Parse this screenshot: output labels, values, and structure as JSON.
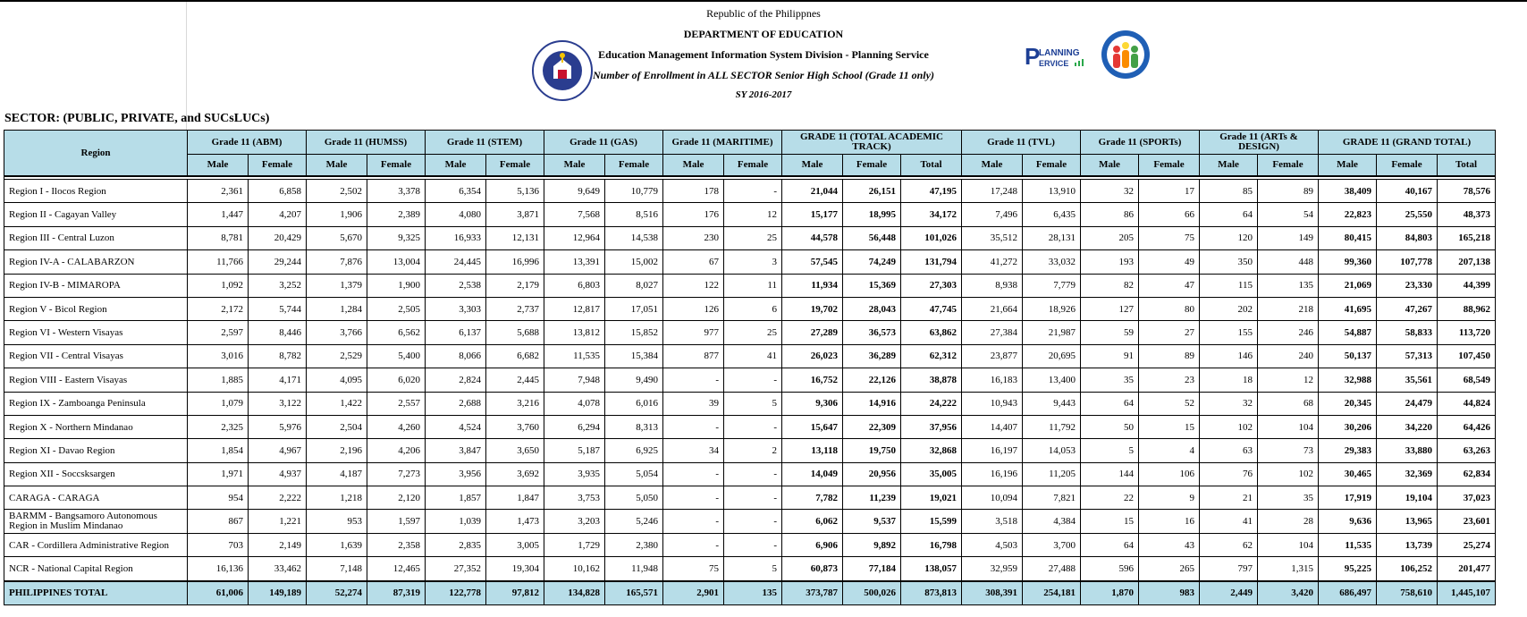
{
  "header": {
    "line1": "Republic of the Philippnes",
    "line2": "DEPARTMENT OF EDUCATION",
    "line3": "Education Management Information System Division - Planning Service",
    "line4": "Number of Enrollment in ALL SECTOR Senior High School (Grade 11 only)",
    "line5": "SY 2016-2017",
    "seal_text": "KAGAWARAN NG EDUKASYON",
    "planning_logo": "PLANNING SERVICE"
  },
  "sector_label": "SECTOR: (PUBLIC, PRIVATE, and SUCsLUCs)",
  "table": {
    "region_header": "Region",
    "groups": [
      "Grade 11 (ABM)",
      "Grade 11 (HUMSS)",
      "Grade 11 (STEM)",
      "Grade 11 (GAS)",
      "Grade 11 (MARITIME)",
      "GRADE 11 (TOTAL ACADEMIC TRACK)",
      "Grade 11 (TVL)",
      "Grade 11 (SPORTs)",
      "Grade 11 (ARTs & DESIGN)",
      "GRADE 11 (GRAND TOTAL)"
    ],
    "sub": {
      "male": "Male",
      "female": "Female",
      "total": "Total"
    },
    "rows": [
      [
        "Region I - Ilocos Region",
        "2,361",
        "6,858",
        "2,502",
        "3,378",
        "6,354",
        "5,136",
        "9,649",
        "10,779",
        "178",
        "-",
        "21,044",
        "26,151",
        "47,195",
        "17,248",
        "13,910",
        "32",
        "17",
        "85",
        "89",
        "38,409",
        "40,167",
        "78,576"
      ],
      [
        "Region II - Cagayan Valley",
        "1,447",
        "4,207",
        "1,906",
        "2,389",
        "4,080",
        "3,871",
        "7,568",
        "8,516",
        "176",
        "12",
        "15,177",
        "18,995",
        "34,172",
        "7,496",
        "6,435",
        "86",
        "66",
        "64",
        "54",
        "22,823",
        "25,550",
        "48,373"
      ],
      [
        "Region III - Central Luzon",
        "8,781",
        "20,429",
        "5,670",
        "9,325",
        "16,933",
        "12,131",
        "12,964",
        "14,538",
        "230",
        "25",
        "44,578",
        "56,448",
        "101,026",
        "35,512",
        "28,131",
        "205",
        "75",
        "120",
        "149",
        "80,415",
        "84,803",
        "165,218"
      ],
      [
        "Region IV-A - CALABARZON",
        "11,766",
        "29,244",
        "7,876",
        "13,004",
        "24,445",
        "16,996",
        "13,391",
        "15,002",
        "67",
        "3",
        "57,545",
        "74,249",
        "131,794",
        "41,272",
        "33,032",
        "193",
        "49",
        "350",
        "448",
        "99,360",
        "107,778",
        "207,138"
      ],
      [
        "Region IV-B - MIMAROPA",
        "1,092",
        "3,252",
        "1,379",
        "1,900",
        "2,538",
        "2,179",
        "6,803",
        "8,027",
        "122",
        "11",
        "11,934",
        "15,369",
        "27,303",
        "8,938",
        "7,779",
        "82",
        "47",
        "115",
        "135",
        "21,069",
        "23,330",
        "44,399"
      ],
      [
        "Region V - Bicol Region",
        "2,172",
        "5,744",
        "1,284",
        "2,505",
        "3,303",
        "2,737",
        "12,817",
        "17,051",
        "126",
        "6",
        "19,702",
        "28,043",
        "47,745",
        "21,664",
        "18,926",
        "127",
        "80",
        "202",
        "218",
        "41,695",
        "47,267",
        "88,962"
      ],
      [
        "Region VI - Western Visayas",
        "2,597",
        "8,446",
        "3,766",
        "6,562",
        "6,137",
        "5,688",
        "13,812",
        "15,852",
        "977",
        "25",
        "27,289",
        "36,573",
        "63,862",
        "27,384",
        "21,987",
        "59",
        "27",
        "155",
        "246",
        "54,887",
        "58,833",
        "113,720"
      ],
      [
        "Region VII - Central Visayas",
        "3,016",
        "8,782",
        "2,529",
        "5,400",
        "8,066",
        "6,682",
        "11,535",
        "15,384",
        "877",
        "41",
        "26,023",
        "36,289",
        "62,312",
        "23,877",
        "20,695",
        "91",
        "89",
        "146",
        "240",
        "50,137",
        "57,313",
        "107,450"
      ],
      [
        "Region VIII - Eastern Visayas",
        "1,885",
        "4,171",
        "4,095",
        "6,020",
        "2,824",
        "2,445",
        "7,948",
        "9,490",
        "-",
        "-",
        "16,752",
        "22,126",
        "38,878",
        "16,183",
        "13,400",
        "35",
        "23",
        "18",
        "12",
        "32,988",
        "35,561",
        "68,549"
      ],
      [
        "Region IX - Zamboanga Peninsula",
        "1,079",
        "3,122",
        "1,422",
        "2,557",
        "2,688",
        "3,216",
        "4,078",
        "6,016",
        "39",
        "5",
        "9,306",
        "14,916",
        "24,222",
        "10,943",
        "9,443",
        "64",
        "52",
        "32",
        "68",
        "20,345",
        "24,479",
        "44,824"
      ],
      [
        "Region X - Northern Mindanao",
        "2,325",
        "5,976",
        "2,504",
        "4,260",
        "4,524",
        "3,760",
        "6,294",
        "8,313",
        "-",
        "-",
        "15,647",
        "22,309",
        "37,956",
        "14,407",
        "11,792",
        "50",
        "15",
        "102",
        "104",
        "30,206",
        "34,220",
        "64,426"
      ],
      [
        "Region XI - Davao Region",
        "1,854",
        "4,967",
        "2,196",
        "4,206",
        "3,847",
        "3,650",
        "5,187",
        "6,925",
        "34",
        "2",
        "13,118",
        "19,750",
        "32,868",
        "16,197",
        "14,053",
        "5",
        "4",
        "63",
        "73",
        "29,383",
        "33,880",
        "63,263"
      ],
      [
        "Region XII - Soccsksargen",
        "1,971",
        "4,937",
        "4,187",
        "7,273",
        "3,956",
        "3,692",
        "3,935",
        "5,054",
        "-",
        "-",
        "14,049",
        "20,956",
        "35,005",
        "16,196",
        "11,205",
        "144",
        "106",
        "76",
        "102",
        "30,465",
        "32,369",
        "62,834"
      ],
      [
        "CARAGA - CARAGA",
        "954",
        "2,222",
        "1,218",
        "2,120",
        "1,857",
        "1,847",
        "3,753",
        "5,050",
        "-",
        "-",
        "7,782",
        "11,239",
        "19,021",
        "10,094",
        "7,821",
        "22",
        "9",
        "21",
        "35",
        "17,919",
        "19,104",
        "37,023"
      ],
      [
        "BARMM - Bangsamoro Autonomous Region in Muslim Mindanao",
        "867",
        "1,221",
        "953",
        "1,597",
        "1,039",
        "1,473",
        "3,203",
        "5,246",
        "-",
        "-",
        "6,062",
        "9,537",
        "15,599",
        "3,518",
        "4,384",
        "15",
        "16",
        "41",
        "28",
        "9,636",
        "13,965",
        "23,601"
      ],
      [
        "CAR - Cordillera Administrative Region",
        "703",
        "2,149",
        "1,639",
        "2,358",
        "2,835",
        "3,005",
        "1,729",
        "2,380",
        "-",
        "-",
        "6,906",
        "9,892",
        "16,798",
        "4,503",
        "3,700",
        "64",
        "43",
        "62",
        "104",
        "11,535",
        "13,739",
        "25,274"
      ],
      [
        "NCR - National Capital Region",
        "16,136",
        "33,462",
        "7,148",
        "12,465",
        "27,352",
        "19,304",
        "10,162",
        "11,948",
        "75",
        "5",
        "60,873",
        "77,184",
        "138,057",
        "32,959",
        "27,488",
        "596",
        "265",
        "797",
        "1,315",
        "95,225",
        "106,252",
        "201,477"
      ]
    ],
    "total_row": [
      "PHILIPPINES TOTAL",
      "61,006",
      "149,189",
      "52,274",
      "87,319",
      "122,778",
      "97,812",
      "134,828",
      "165,571",
      "2,901",
      "135",
      "373,787",
      "500,026",
      "873,813",
      "308,391",
      "254,181",
      "1,870",
      "983",
      "2,449",
      "3,420",
      "686,497",
      "758,610",
      "1,445,107"
    ]
  },
  "colors": {
    "header_bg": "#b7dde8",
    "grid": "#d8d8d8",
    "border": "#000000"
  }
}
